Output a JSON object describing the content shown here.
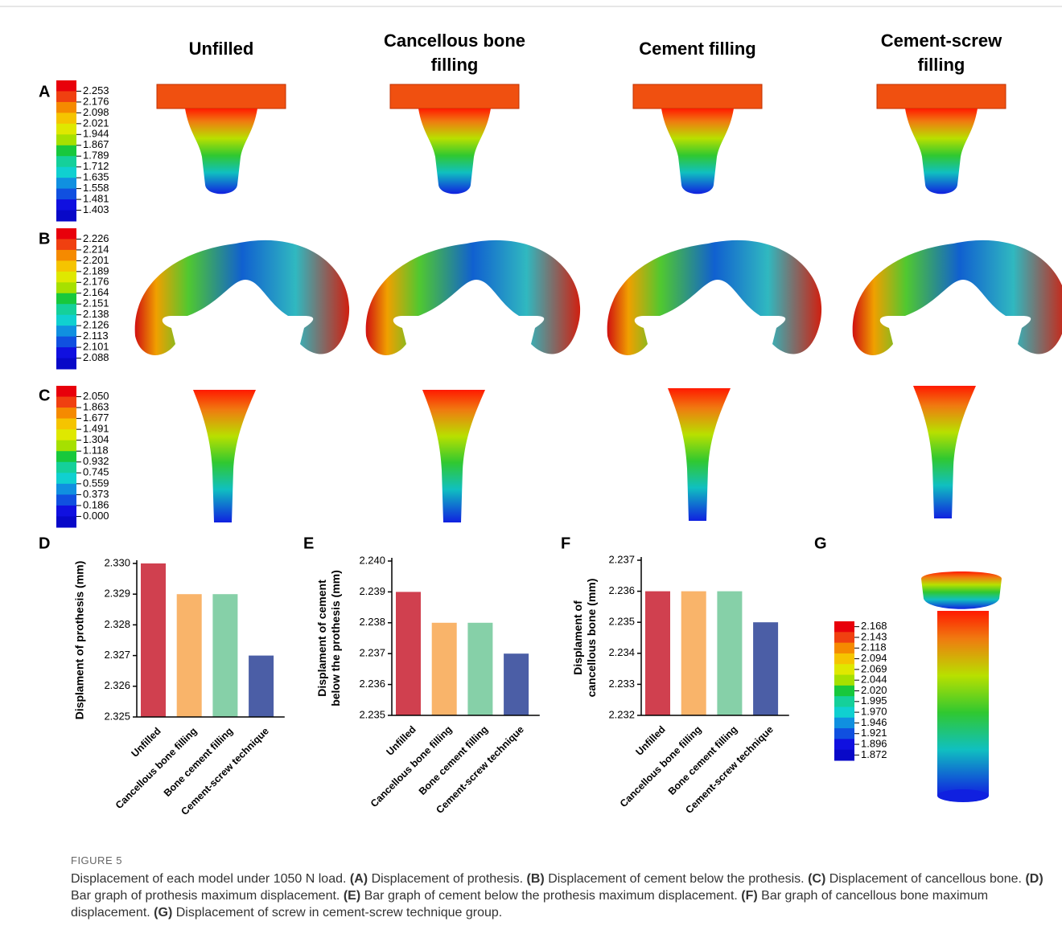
{
  "column_headers": [
    [
      "Unfilled"
    ],
    [
      "Cancellous bone",
      "filling"
    ],
    [
      "Cement filling"
    ],
    [
      "Cement-screw",
      "filling"
    ]
  ],
  "panel_labels": [
    "A",
    "B",
    "C",
    "D",
    "E",
    "F",
    "G"
  ],
  "color_legends": [
    {
      "labels": [
        "2.253",
        "2.176",
        "2.098",
        "2.021",
        "1.944",
        "1.867",
        "1.789",
        "1.712",
        "1.635",
        "1.558",
        "1.481",
        "1.403"
      ]
    },
    {
      "labels": [
        "2.226",
        "2.214",
        "2.201",
        "2.189",
        "2.176",
        "2.164",
        "2.151",
        "2.138",
        "2.126",
        "2.113",
        "2.101",
        "2.088"
      ]
    },
    {
      "labels": [
        "2.050",
        "1.863",
        "1.677",
        "1.491",
        "1.304",
        "1.118",
        "0.932",
        "0.745",
        "0.559",
        "0.373",
        "0.186",
        "0.000"
      ]
    },
    {
      "labels": [
        "2.168",
        "2.143",
        "2.118",
        "2.094",
        "2.069",
        "2.044",
        "2.020",
        "1.995",
        "1.970",
        "1.946",
        "1.921",
        "1.896",
        "1.872"
      ]
    }
  ],
  "chart_data": [
    {
      "type": "bar",
      "ylabel": [
        "Displament of prothesis (mm)"
      ],
      "categories": [
        "Unfilled",
        "Cancellous bone filling",
        "Bone cement filling",
        "Cement-screw technique"
      ],
      "values": [
        2.33,
        2.329,
        2.329,
        2.327
      ],
      "colors": [
        "#d0404f",
        "#f9b46a",
        "#86d0a8",
        "#4b5ea6"
      ],
      "ylim": [
        2.325,
        2.33
      ],
      "yticks": [
        {
          "value": 2.325,
          "label": "2.325"
        },
        2.326,
        2.327,
        2.328,
        2.329,
        {
          "value": 2.33,
          "label": "2.330"
        }
      ]
    },
    {
      "type": "bar",
      "ylabel": [
        "Displament of cement",
        "below the prothesis (mm)"
      ],
      "categories": [
        "Unfilled",
        "Cancellous bone filling",
        "Bone cement filling",
        "Cement-screw technique"
      ],
      "values": [
        2.239,
        2.238,
        2.238,
        2.237
      ],
      "colors": [
        "#d0404f",
        "#f9b46a",
        "#86d0a8",
        "#4b5ea6"
      ],
      "ylim": [
        2.235,
        2.24
      ],
      "yticks": [
        2.235,
        2.236,
        2.237,
        2.238,
        2.239,
        {
          "value": 2.24,
          "label": "2.240"
        }
      ]
    },
    {
      "type": "bar",
      "ylabel": [
        "Displament of",
        "cancellous bone (mm)"
      ],
      "categories": [
        "Unfilled",
        "Cancellous bone filling",
        "Bone cement filling",
        "Cement-screw technique"
      ],
      "values": [
        2.236,
        2.236,
        2.236,
        2.235
      ],
      "colors": [
        "#d0404f",
        "#f9b46a",
        "#86d0a8",
        "#4b5ea6"
      ],
      "ylim": [
        2.232,
        2.237
      ],
      "yticks": [
        2.232,
        2.233,
        2.234,
        2.235,
        2.236,
        2.237
      ]
    }
  ],
  "caption": {
    "figure": "FIGURE 5",
    "intro": "Displacement of each model under 1050 N load.",
    "items": [
      {
        "label": "(A)",
        "text": "Displacement of prothesis."
      },
      {
        "label": "(B)",
        "text": "Displacement of cement below the prothesis."
      },
      {
        "label": "(C)",
        "text": "Displacement of cancellous bone."
      },
      {
        "label": "(D)",
        "text": "Bar graph of prothesis maximum displacement."
      },
      {
        "label": "(E)",
        "text": "Bar graph of cement below the prothesis maximum displacement."
      },
      {
        "label": "(F)",
        "text": "Bar graph of cancellous bone maximum displacement."
      },
      {
        "label": "(G)",
        "text": "Displacement of screw in cement-screw technique group."
      }
    ]
  }
}
